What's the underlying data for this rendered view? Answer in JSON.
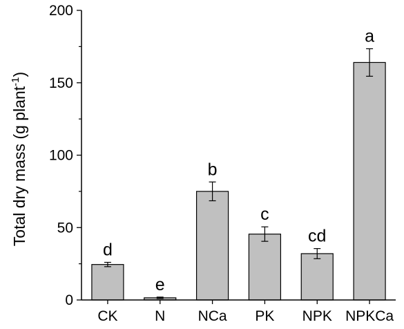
{
  "chart_data": {
    "type": "bar",
    "ylabel": "Total dry mass (g plant",
    "ylabel_superscript": "-1",
    "ylabel_close": ")",
    "xlabel": "",
    "ylim": [
      0,
      200
    ],
    "yticks": [
      0,
      50,
      100,
      150,
      200
    ],
    "minor_step": 25,
    "categories": [
      "CK",
      "N",
      "NCa",
      "PK",
      "NPK",
      "NPKCa"
    ],
    "values": [
      24.5,
      1.5,
      75,
      45.5,
      32,
      164
    ],
    "errors": [
      1.5,
      0.5,
      6.5,
      5,
      3.5,
      9.5
    ],
    "significance_letters": [
      "d",
      "e",
      "b",
      "c",
      "cd",
      "a"
    ],
    "bar_color": "#c0c0c0",
    "bar_stroke": "#000000",
    "grid": false,
    "legend": "none"
  }
}
